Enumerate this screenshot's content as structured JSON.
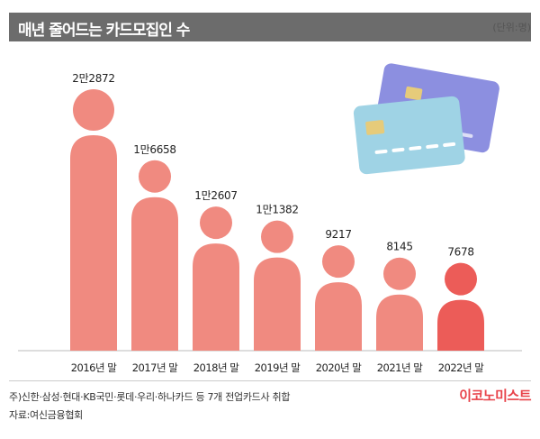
{
  "header": {
    "title": "매년 줄어드는 카드모집인 수",
    "unit": "(단위:명)"
  },
  "footnotes": {
    "note": "주)신한·삼성·현대·KB국민·롯데·우리·하나카드 등 7개 전업카드사 취합",
    "source": "자료:여신금융협회"
  },
  "brand": "이코노미스트",
  "colors": {
    "figure": "#f08a80",
    "highlight": "#ec5c58",
    "highlight_text": "#e8434a",
    "title_bar": "#6c6c6c"
  },
  "chart_data": {
    "type": "bar",
    "categories": [
      "2016년 말",
      "2017년 말",
      "2018년 말",
      "2019년 말",
      "2020년 말",
      "2021년 말",
      "2022년 말"
    ],
    "values": [
      22872,
      16658,
      12607,
      11382,
      9217,
      8145,
      7678
    ],
    "value_labels": [
      "2만2872",
      "1만6658",
      "1만2607",
      "1만1382",
      "9217",
      "8145",
      "7678"
    ],
    "highlight_index": 6,
    "xlabel": "",
    "ylabel": "",
    "grid": false
  }
}
